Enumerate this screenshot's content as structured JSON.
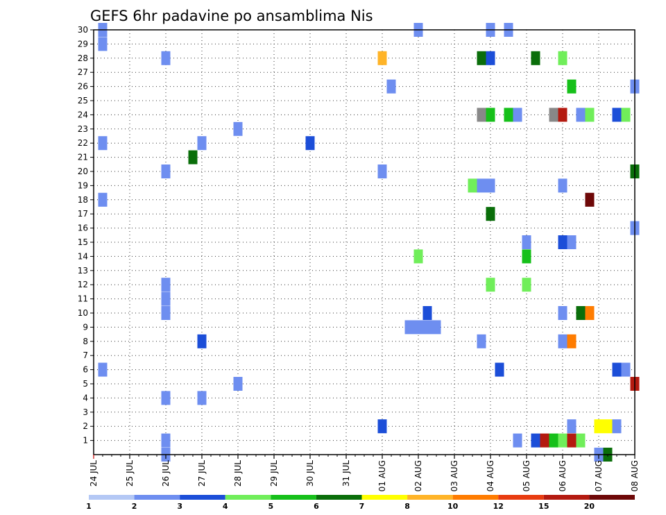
{
  "chart_data": {
    "type": "heatmap",
    "title": "GEFS 6hr padavine po ansamblima Nis",
    "xlabel": "",
    "ylabel": "",
    "x_tick_labels": [
      "24 JUL",
      "25 JUL",
      "26 JUL",
      "27 JUL",
      "28 JUL",
      "29 JUL",
      "30 JUL",
      "31 JUL",
      "01 AUG",
      "02 AUG",
      "03 AUG",
      "04 AUG",
      "05 AUG",
      "06 AUG",
      "07 AUG",
      "08 AUG"
    ],
    "y_tick_labels": [
      "1",
      "2",
      "3",
      "4",
      "5",
      "6",
      "7",
      "8",
      "9",
      "10",
      "11",
      "12",
      "13",
      "14",
      "15",
      "16",
      "17",
      "18",
      "19",
      "20",
      "21",
      "22",
      "23",
      "24",
      "25",
      "26",
      "27",
      "28",
      "29",
      "30"
    ],
    "xlim_days": [
      0,
      15
    ],
    "ylim": [
      0,
      30
    ],
    "grid": true,
    "legend": {
      "placement": "bottom",
      "labels": [
        "1",
        "2",
        "3",
        "4",
        "5",
        "6",
        "7",
        "8",
        "10",
        "12",
        "15",
        "20"
      ],
      "colors": [
        "#b4c8f5",
        "#6e8ef0",
        "#1c4ed8",
        "#70ee5a",
        "#16c01a",
        "#0a6e0a",
        "#ffff00",
        "#ffb428",
        "#ff7c00",
        "#e83c10",
        "#b41a10",
        "#6e0808"
      ]
    },
    "cells": [
      {
        "d": 0.25,
        "m": 29,
        "v": 1
      },
      {
        "d": 0.25,
        "m": 30,
        "v": 1
      },
      {
        "d": 0.25,
        "m": 22,
        "v": 1
      },
      {
        "d": 0.25,
        "m": 18,
        "v": 1
      },
      {
        "d": 0.25,
        "m": 6,
        "v": 1
      },
      {
        "d": 2.0,
        "m": 28,
        "v": 1
      },
      {
        "d": 2.0,
        "m": 20,
        "v": 1
      },
      {
        "d": 2.0,
        "m": 11,
        "v": 1
      },
      {
        "d": 2.0,
        "m": 12,
        "v": 1
      },
      {
        "d": 2.0,
        "m": 10,
        "v": 1
      },
      {
        "d": 2.0,
        "m": 4,
        "v": 1
      },
      {
        "d": 2.0,
        "m": 1,
        "v": 1
      },
      {
        "d": 2.0,
        "m": 0,
        "v": 1
      },
      {
        "d": 2.75,
        "m": 21,
        "v": 5
      },
      {
        "d": 3.0,
        "m": 22,
        "v": 1
      },
      {
        "d": 3.0,
        "m": 8,
        "v": 2
      },
      {
        "d": 3.0,
        "m": 4,
        "v": 1
      },
      {
        "d": 4.0,
        "m": 23,
        "v": 1
      },
      {
        "d": 4.0,
        "m": 5,
        "v": 1
      },
      {
        "d": 6.0,
        "m": 22,
        "v": 2
      },
      {
        "d": 8.0,
        "m": 28,
        "v": 7
      },
      {
        "d": 8.0,
        "m": 20,
        "v": 1
      },
      {
        "d": 8.0,
        "m": 2,
        "v": 2
      },
      {
        "d": 8.25,
        "m": 26,
        "v": 1
      },
      {
        "d": 8.75,
        "m": 9,
        "v": 1
      },
      {
        "d": 9.0,
        "m": 30,
        "v": 1
      },
      {
        "d": 9.0,
        "m": 14,
        "v": 3
      },
      {
        "d": 9.0,
        "m": 9,
        "v": 1
      },
      {
        "d": 9.25,
        "m": 10,
        "v": 2
      },
      {
        "d": 9.25,
        "m": 9,
        "v": 1
      },
      {
        "d": 9.5,
        "m": 9,
        "v": 1
      },
      {
        "d": 10.5,
        "m": 19,
        "v": 3
      },
      {
        "d": 10.75,
        "m": 28,
        "v": 5
      },
      {
        "d": 10.75,
        "m": 24,
        "v": 12
      },
      {
        "d": 10.75,
        "m": 19,
        "v": 1
      },
      {
        "d": 10.75,
        "m": 8,
        "v": 1
      },
      {
        "d": 11.0,
        "m": 30,
        "v": 1
      },
      {
        "d": 11.0,
        "m": 28,
        "v": 2
      },
      {
        "d": 11.0,
        "m": 24,
        "v": 4
      },
      {
        "d": 11.0,
        "m": 19,
        "v": 1
      },
      {
        "d": 11.0,
        "m": 17,
        "v": 5
      },
      {
        "d": 11.0,
        "m": 12,
        "v": 3
      },
      {
        "d": 11.25,
        "m": 6,
        "v": 2
      },
      {
        "d": 11.5,
        "m": 30,
        "v": 1
      },
      {
        "d": 11.5,
        "m": 24,
        "v": 4
      },
      {
        "d": 11.75,
        "m": 24,
        "v": 1
      },
      {
        "d": 11.75,
        "m": 1,
        "v": 1
      },
      {
        "d": 12.0,
        "m": 15,
        "v": 1
      },
      {
        "d": 12.0,
        "m": 14,
        "v": 4
      },
      {
        "d": 12.0,
        "m": 12,
        "v": 3
      },
      {
        "d": 12.25,
        "m": 28,
        "v": 5
      },
      {
        "d": 12.25,
        "m": 1,
        "v": 2
      },
      {
        "d": 12.5,
        "m": 1,
        "v": 10
      },
      {
        "d": 12.75,
        "m": 24,
        "v": 12
      },
      {
        "d": 12.75,
        "m": 1,
        "v": 4
      },
      {
        "d": 13.0,
        "m": 28,
        "v": 3
      },
      {
        "d": 13.0,
        "m": 24,
        "v": 10
      },
      {
        "d": 13.0,
        "m": 19,
        "v": 1
      },
      {
        "d": 13.0,
        "m": 15,
        "v": 2
      },
      {
        "d": 13.0,
        "m": 10,
        "v": 1
      },
      {
        "d": 13.0,
        "m": 8,
        "v": 1
      },
      {
        "d": 13.0,
        "m": 1,
        "v": 3
      },
      {
        "d": 13.25,
        "m": 26,
        "v": 4
      },
      {
        "d": 13.25,
        "m": 15,
        "v": 1
      },
      {
        "d": 13.25,
        "m": 2,
        "v": 1
      },
      {
        "d": 13.25,
        "m": 1,
        "v": 10
      },
      {
        "d": 13.25,
        "m": 8,
        "v": 8
      },
      {
        "d": 13.5,
        "m": 24,
        "v": 1
      },
      {
        "d": 13.5,
        "m": 10,
        "v": 5
      },
      {
        "d": 13.5,
        "m": 1,
        "v": 3
      },
      {
        "d": 13.75,
        "m": 24,
        "v": 3
      },
      {
        "d": 13.75,
        "m": 18,
        "v": 11
      },
      {
        "d": 13.75,
        "m": 10,
        "v": 8
      },
      {
        "d": 14.0,
        "m": 2,
        "v": 6
      },
      {
        "d": 14.0,
        "m": 0,
        "v": 1
      },
      {
        "d": 14.25,
        "m": 2,
        "v": 6
      },
      {
        "d": 14.25,
        "m": 0,
        "v": 5
      },
      {
        "d": 14.5,
        "m": 24,
        "v": 2
      },
      {
        "d": 14.5,
        "m": 6,
        "v": 2
      },
      {
        "d": 14.5,
        "m": 2,
        "v": 1
      },
      {
        "d": 14.75,
        "m": 24,
        "v": 3
      },
      {
        "d": 14.75,
        "m": 6,
        "v": 1
      },
      {
        "d": 15.0,
        "m": 26,
        "v": 1
      },
      {
        "d": 15.0,
        "m": 20,
        "v": 5
      },
      {
        "d": 15.0,
        "m": 16,
        "v": 1
      },
      {
        "d": 15.0,
        "m": 5,
        "v": 10
      }
    ]
  }
}
